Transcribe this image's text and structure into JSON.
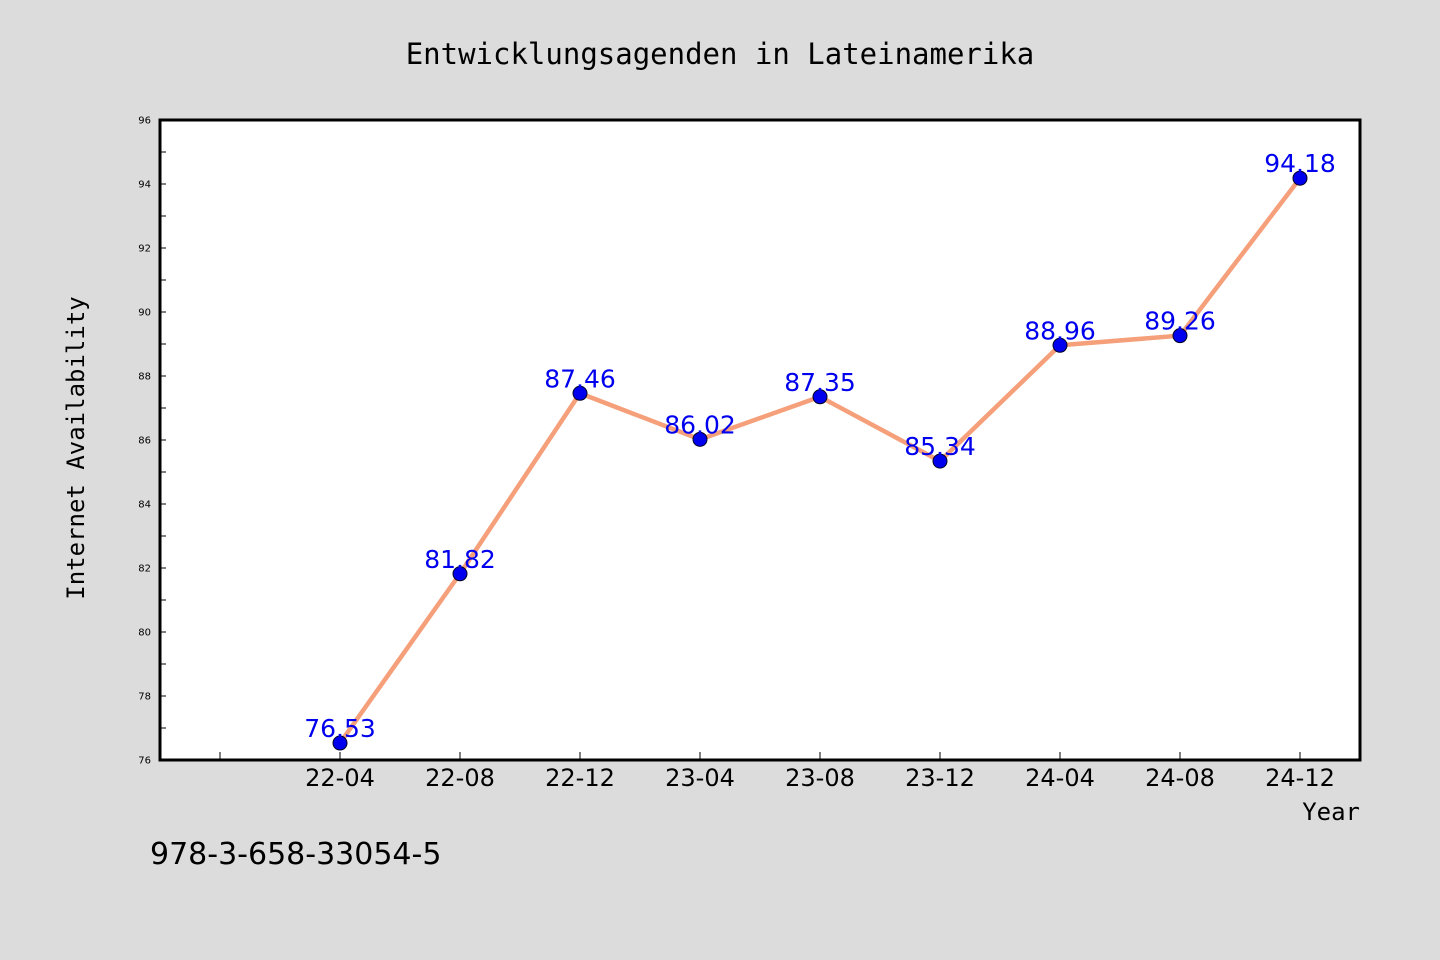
{
  "chart_data": {
    "type": "line",
    "title": "Entwicklungsagenden in Lateinamerika",
    "xlabel": "Year",
    "ylabel": "Internet Availability",
    "categories": [
      "22-04",
      "22-08",
      "22-12",
      "23-04",
      "23-08",
      "23-12",
      "24-04",
      "24-08",
      "24-12"
    ],
    "series": [
      {
        "values": [
          76.53,
          81.82,
          87.46,
          86.02,
          87.35,
          85.34,
          88.96,
          89.26,
          94.18
        ]
      }
    ],
    "data_labels": [
      "76.53",
      "81.82",
      "87.46",
      "86.02",
      "87.35",
      "85.34",
      "88.96",
      "89.26",
      "94.18"
    ],
    "ylim": [
      76,
      96
    ],
    "yticks": [
      76,
      78,
      80,
      82,
      84,
      86,
      88,
      90,
      92,
      94,
      96
    ],
    "grid": false,
    "legend": "none",
    "colors": {
      "line": "#f5a07a",
      "marker": "#0000ee",
      "data_label": "#0000ee",
      "plot_bg": "#ffffff",
      "page_bg": "#dcdcdc"
    }
  },
  "footer": {
    "code": "978-3-658-33054-5"
  }
}
